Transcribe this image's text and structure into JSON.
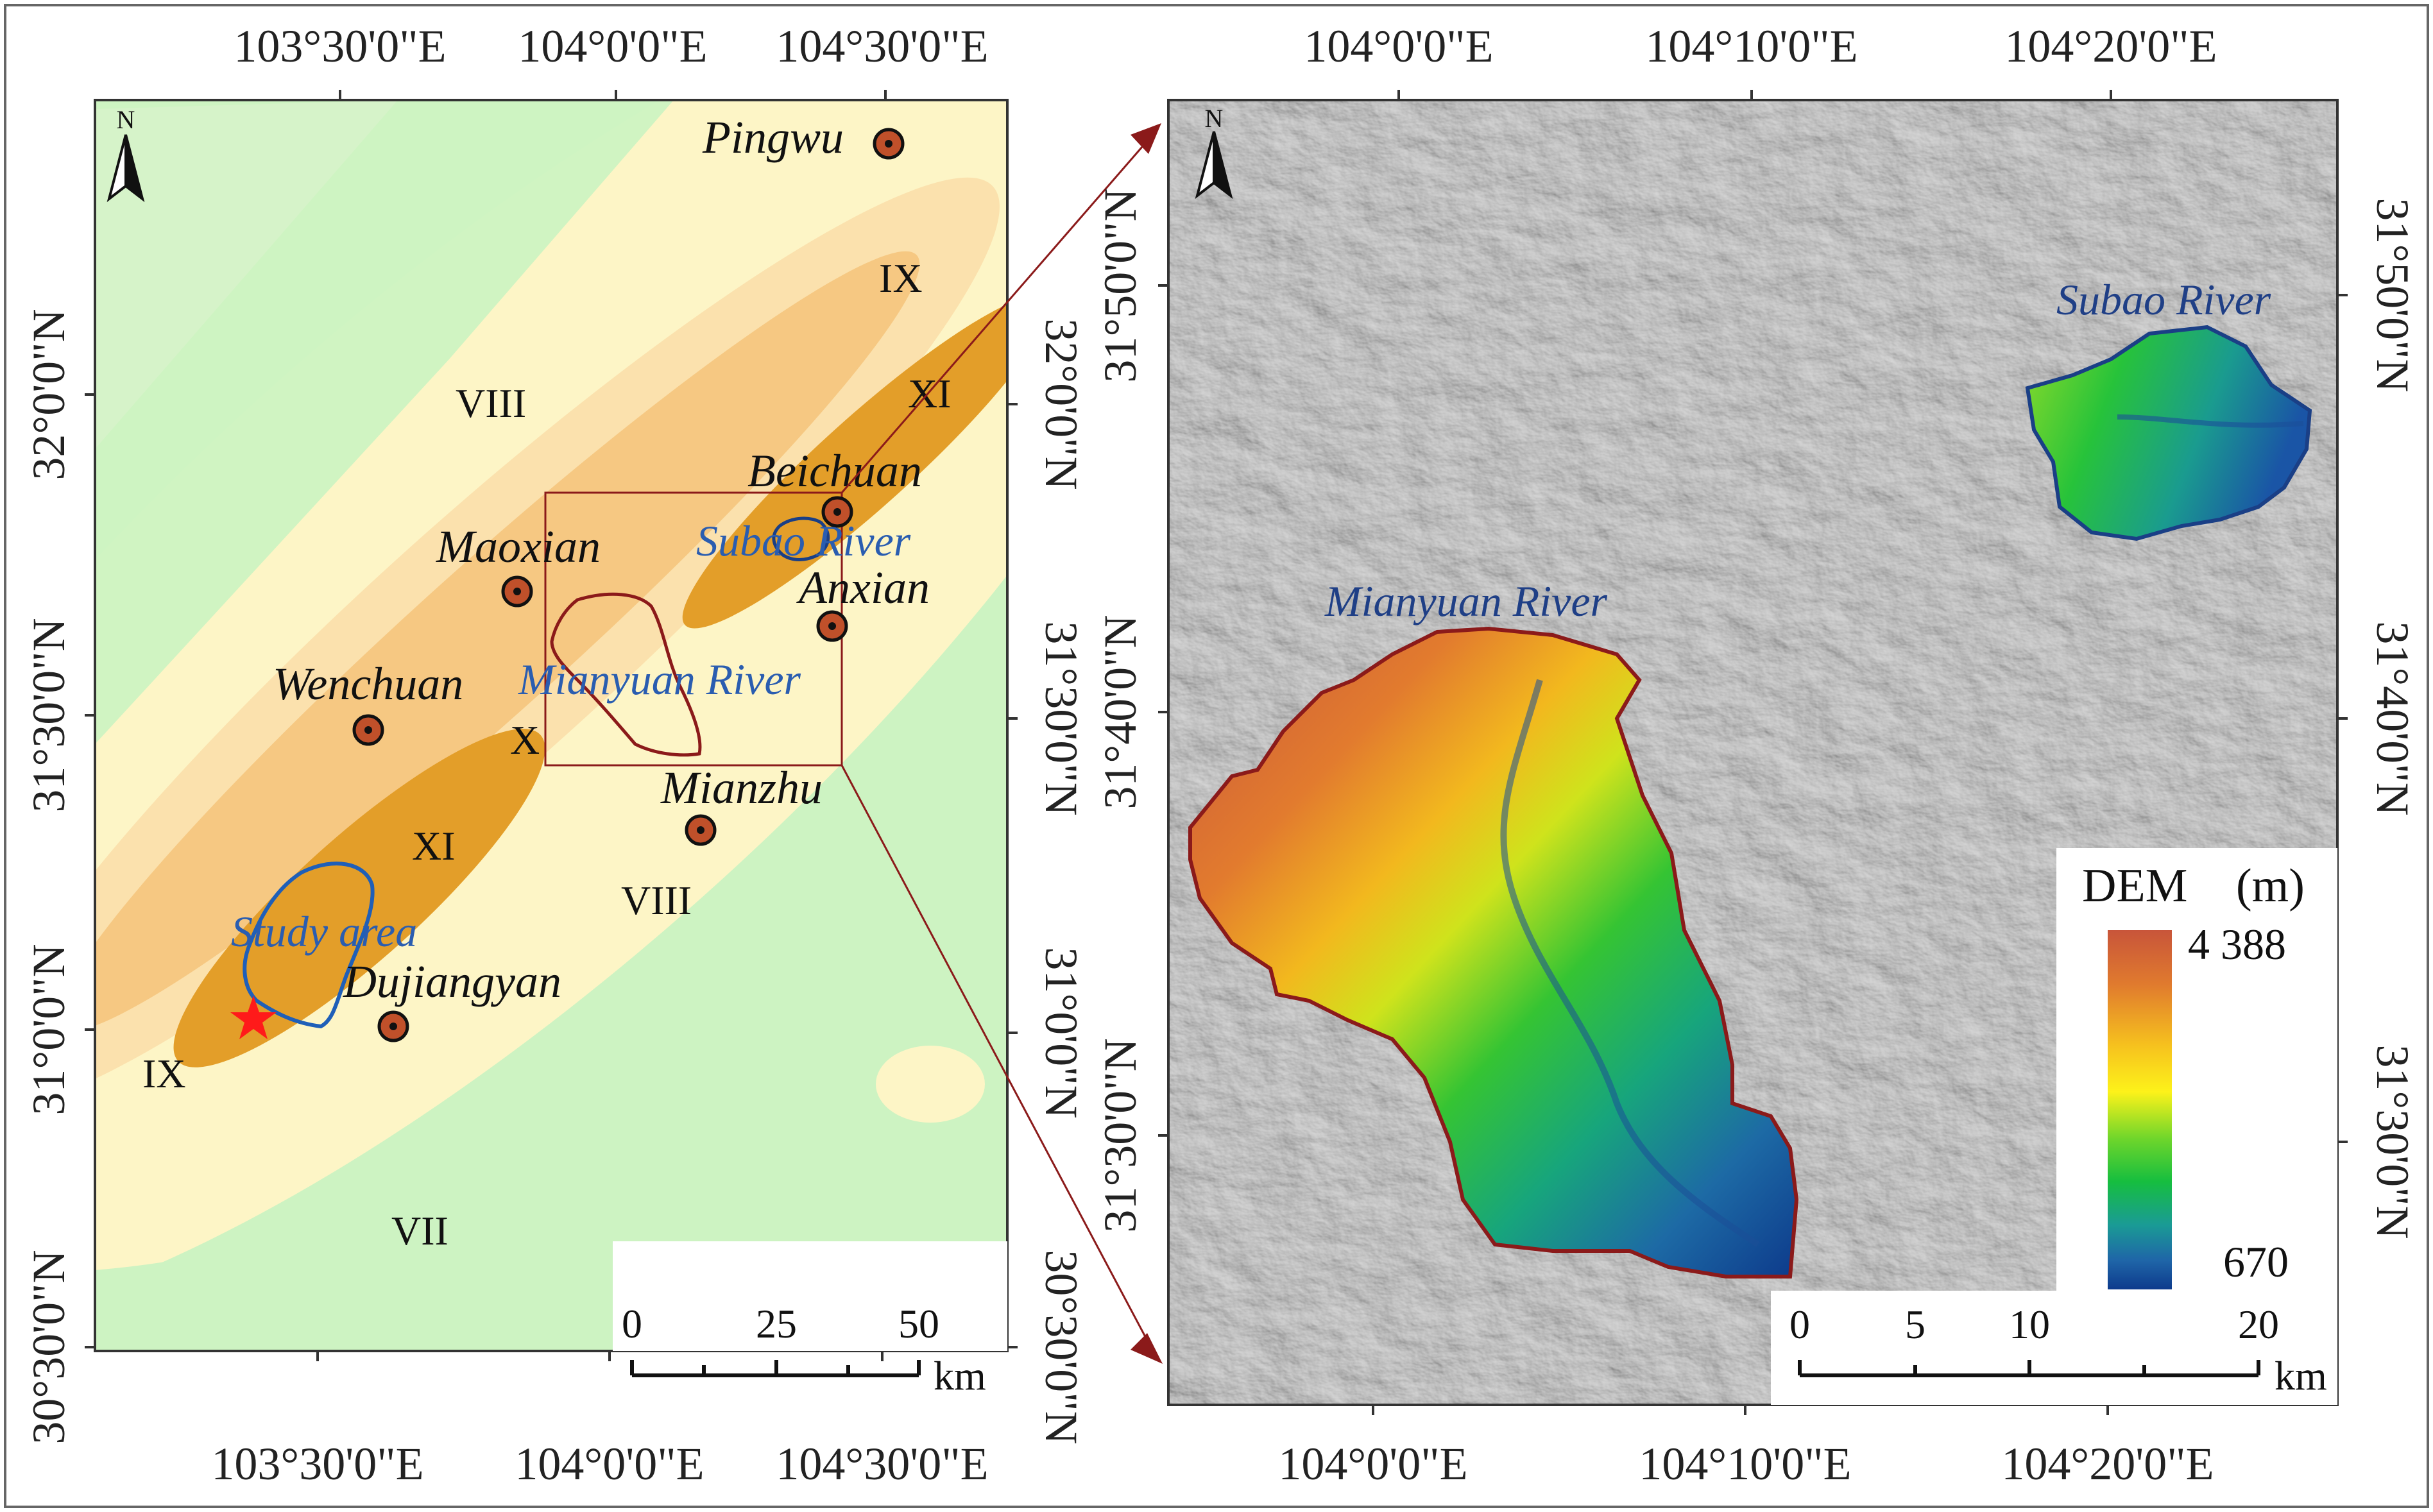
{
  "left_map": {
    "top_longitudes": [
      "103°30'0\"E",
      "104°0'0\"E",
      "104°30'0\"E"
    ],
    "bottom_longitudes": [
      "103°30'0\"E",
      "104°0'0\"E",
      "104°30'0\"E"
    ],
    "left_latitudes": [
      "32°0'0\"N",
      "31°30'0\"N",
      "31°0'0\"N",
      "30°30'0\"N"
    ],
    "right_latitudes": [
      "32°0'0\"N",
      "31°30'0\"N",
      "31°0'0\"N",
      "30°30'0\"N"
    ],
    "north_label": "N",
    "cities": [
      "Pingwu",
      "Beichuan",
      "Maoxian",
      "Anxian",
      "Wenchuan",
      "Mianzhu",
      "Dujiangyan"
    ],
    "intensity_labels": [
      "IX",
      "XI",
      "VIII",
      "X",
      "XI",
      "VIII",
      "IX",
      "VII"
    ],
    "rivers": [
      "Subao River",
      "Mianyuan River"
    ],
    "study_area_label": "Study area",
    "scale_labels": [
      "0",
      "25",
      "50"
    ],
    "scale_unit": "km",
    "colors": {
      "VII": "#cdf3c2",
      "VIII": "#fdf5c6",
      "IX": "#fbe1ad",
      "X": "#f6c882",
      "XI": "#e39e29",
      "river_outline_blue": "#1f5fb8",
      "study_outline_red": "#8b1a1a",
      "epicenter": "#ff1a1a"
    }
  },
  "right_map": {
    "top_longitudes": [
      "104°0'0\"E",
      "104°10'0\"E",
      "104°20'0\"E"
    ],
    "bottom_longitudes": [
      "104°0'0\"E",
      "104°10'0\"E",
      "104°20'0\"E"
    ],
    "left_latitudes": [
      "31°50'0\"N",
      "31°40'0\"N",
      "31°30'0\"N"
    ],
    "right_latitudes": [
      "31°50'0\"N",
      "31°40'0\"N",
      "31°30'0\"N"
    ],
    "north_label": "N",
    "rivers": [
      "Subao River",
      "Mianyuan River"
    ],
    "legend": {
      "title": "DEM",
      "unit": "(m)",
      "max": "4 388",
      "min": "670",
      "colors": [
        "#c8553a",
        "#e58a2a",
        "#f5c01f",
        "#fdf21a",
        "#7fdc2a",
        "#15c23c",
        "#1aa98a",
        "#1f72a8",
        "#0d3b8c"
      ]
    },
    "scale_labels": [
      "0",
      "5",
      "10",
      "20"
    ],
    "scale_unit": "km"
  },
  "connector_color": "#8b1a1a"
}
